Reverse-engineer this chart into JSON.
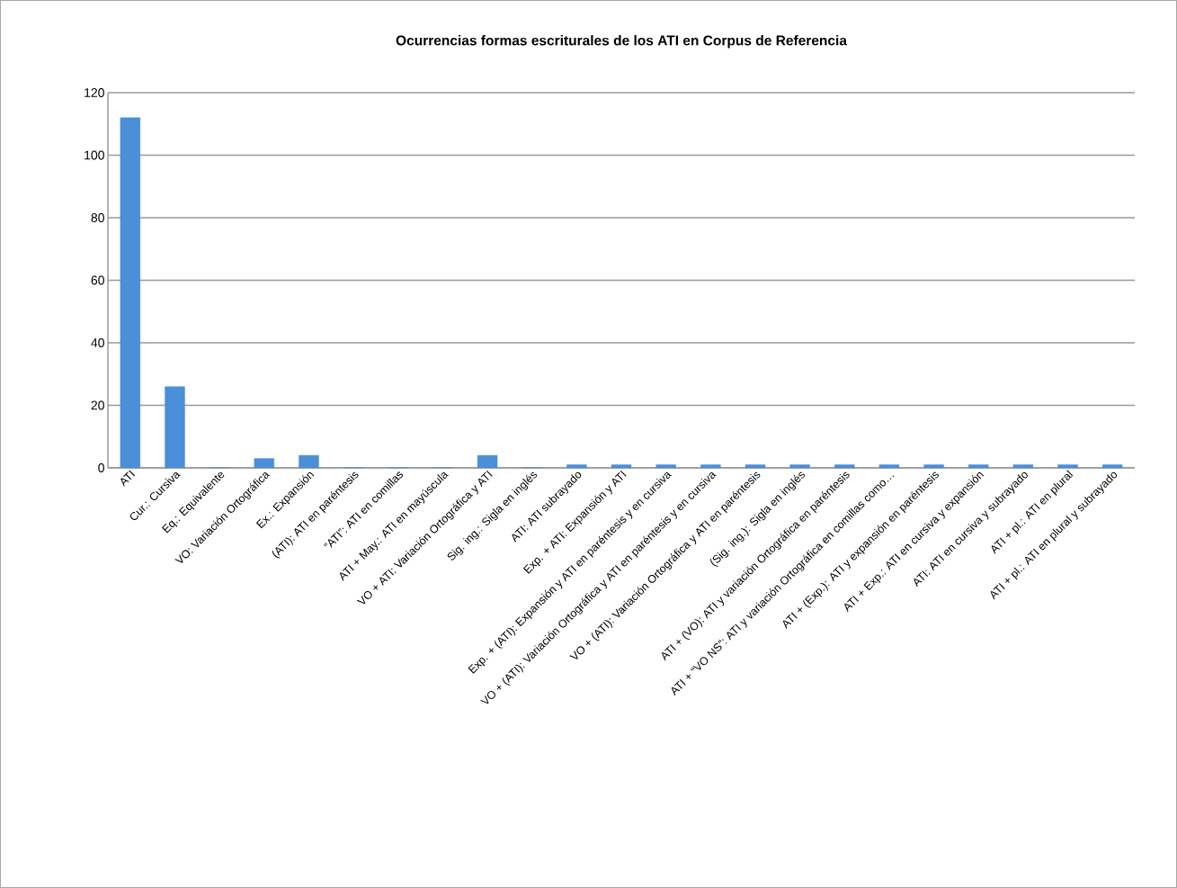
{
  "chart_data": {
    "type": "bar",
    "title": "Ocurrencias  formas escriturales de los  ATI en Corpus de Referencia",
    "categories": [
      "ATI",
      "Cur.: Cursiva",
      "Eq.: Equivalente",
      "VO: Variación Ortográfica",
      "Ex.: Expansión",
      "(ATI): ATI en paréntesis",
      "“ATI”: ATI en comillas",
      "ATI + May.: ATI en mayúscula",
      "VO + ATI: Variación Ortográfica y ATI",
      "Sig. ing.: Sigla en inglés",
      "ATI: ATI subrayado",
      "Exp. + ATI: Expansión y ATI",
      "Exp. + (ATI): Expansión y ATI en paréntesis y en cursiva",
      "VO + (ATI): Variación Ortográfica y ATI en paréntesis y en cursiva",
      "VO + (ATI): Variación Ortográfica y ATI en paréntesis",
      "(Sig. ing.): Sigla en inglés",
      "ATI + (VO): ATI y variación Ortográfica en paréntesis",
      "ATI + “VO NS”: ATI y variación Ortográfica en comillas como…",
      "ATI + (Exp.): ATI y expansión en paréntesis",
      "ATI + Exp.: ATI en cursiva y expansión",
      "ATI: ATI en cursiva y subrayado",
      "ATI + pl.: ATI en plural",
      "ATI + pl.: ATI en plural y subrayado"
    ],
    "values": [
      112,
      26,
      0,
      3,
      4,
      0,
      0,
      0,
      4,
      0,
      1,
      1,
      1,
      1,
      1,
      1,
      1,
      1,
      1,
      1,
      1,
      1,
      1
    ],
    "color": "#4a8fd8",
    "ylim": [
      0,
      120
    ],
    "yticks": [
      0,
      20,
      40,
      60,
      80,
      100,
      120
    ],
    "grid": "y"
  }
}
